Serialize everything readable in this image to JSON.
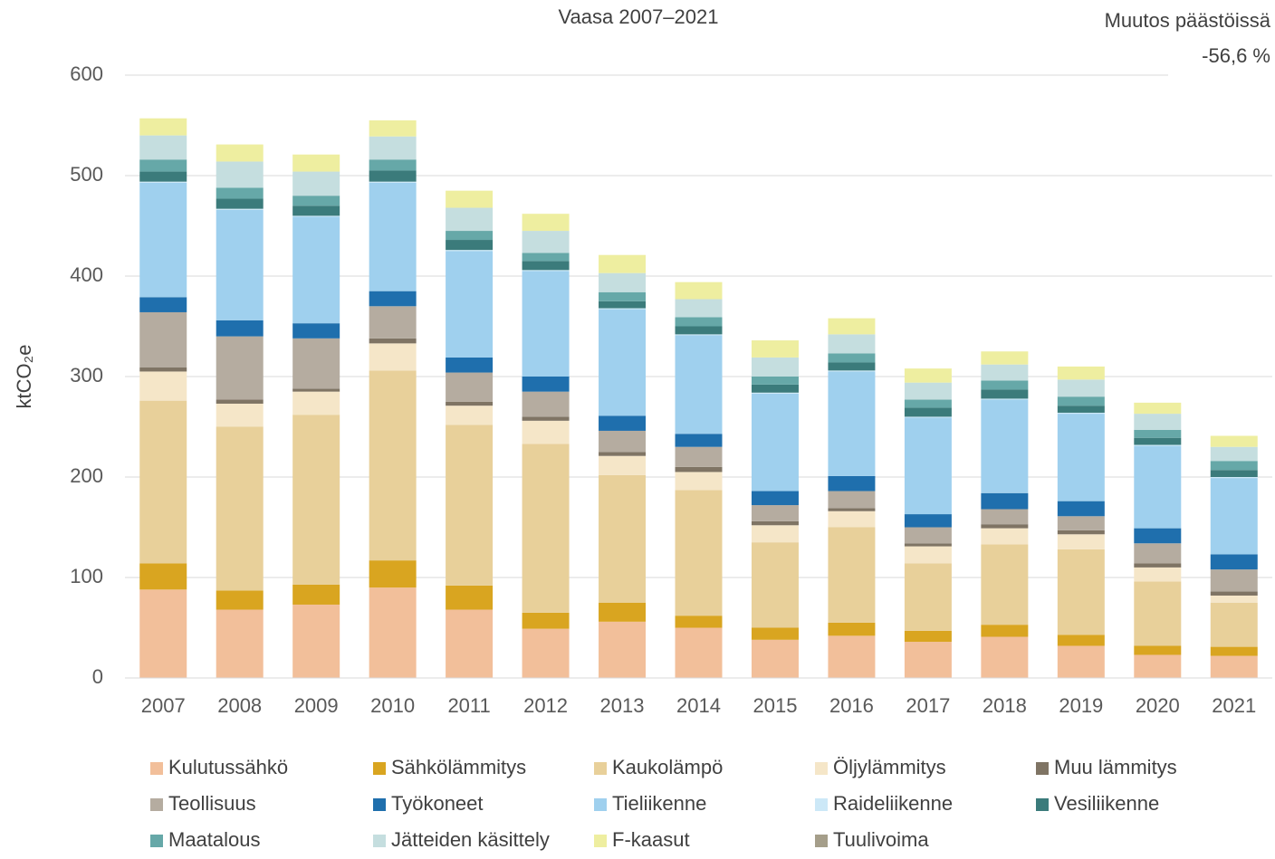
{
  "chart_data": {
    "type": "stacked_bar",
    "title": "Vaasa 2007–2021",
    "annotations": [
      "Muutos päästöissä",
      "-56,6 %"
    ],
    "y_label": "ktCO₂e",
    "categories": [
      "2007",
      "2008",
      "2009",
      "2010",
      "2011",
      "2012",
      "2013",
      "2014",
      "2015",
      "2016",
      "2017",
      "2018",
      "2019",
      "2020",
      "2021"
    ],
    "ylim": [
      0,
      600
    ],
    "yticks": [
      0,
      100,
      200,
      300,
      400,
      500,
      600
    ],
    "grid": true,
    "legend": "bottom",
    "series": [
      {
        "name": "Kulutussähkö",
        "color": "#f2bf9a",
        "values": [
          88,
          68,
          73,
          90,
          68,
          49,
          56,
          50,
          38,
          42,
          36,
          41,
          32,
          23,
          22
        ]
      },
      {
        "name": "Sähkölämmitys",
        "color": "#d9a520",
        "values": [
          26,
          19,
          20,
          27,
          24,
          16,
          19,
          12,
          12,
          13,
          11,
          12,
          11,
          9,
          9
        ]
      },
      {
        "name": "Kaukolämpö",
        "color": "#e8d09a",
        "values": [
          162,
          163,
          169,
          189,
          160,
          168,
          127,
          125,
          85,
          95,
          67,
          80,
          85,
          64,
          44
        ]
      },
      {
        "name": "Öljylämmitys",
        "color": "#f5e6c8",
        "values": [
          29,
          23,
          23,
          27,
          19,
          23,
          19,
          18,
          17,
          16,
          17,
          16,
          15,
          14,
          7
        ]
      },
      {
        "name": "Muu lämmitys",
        "color": "#7f7464",
        "values": [
          4,
          4,
          3,
          5,
          4,
          4,
          4,
          5,
          4,
          3,
          3,
          4,
          4,
          4,
          4
        ]
      },
      {
        "name": "Teollisuus",
        "color": "#b5aca0",
        "values": [
          55,
          63,
          50,
          32,
          29,
          25,
          21,
          20,
          16,
          17,
          16,
          15,
          14,
          20,
          22
        ]
      },
      {
        "name": "Työkoneet",
        "color": "#1f6fad",
        "values": [
          15,
          16,
          15,
          15,
          15,
          15,
          15,
          13,
          14,
          15,
          13,
          16,
          15,
          15,
          15
        ]
      },
      {
        "name": "Tieliikenne",
        "color": "#9fd0ee",
        "values": [
          114,
          110,
          106,
          108,
          106,
          105,
          106,
          98,
          97,
          104,
          96,
          93,
          87,
          82,
          76
        ]
      },
      {
        "name": "Raideliikenne",
        "color": "#cce8f7",
        "values": [
          1,
          1,
          1,
          1,
          1,
          1,
          1,
          1,
          1,
          1,
          1,
          1,
          1,
          1,
          1
        ]
      },
      {
        "name": "Vesiliikenne",
        "color": "#3b7b7b",
        "values": [
          10,
          10,
          10,
          11,
          10,
          9,
          7,
          8,
          8,
          8,
          9,
          9,
          7,
          7,
          7
        ]
      },
      {
        "name": "Maatalous",
        "color": "#66a8a8",
        "values": [
          12,
          11,
          10,
          11,
          9,
          8,
          9,
          9,
          8,
          9,
          8,
          9,
          9,
          8,
          9
        ]
      },
      {
        "name": "Jätteiden käsittely",
        "color": "#c5dedf",
        "values": [
          24,
          26,
          24,
          23,
          23,
          22,
          19,
          18,
          19,
          19,
          17,
          16,
          17,
          16,
          14
        ]
      },
      {
        "name": "F-kaasut",
        "color": "#eeeea0",
        "values": [
          17,
          17,
          17,
          16,
          17,
          17,
          18,
          17,
          17,
          16,
          14,
          13,
          13,
          11,
          11
        ]
      },
      {
        "name": "Tuulivoima",
        "color": "#a59e8a",
        "values": [
          0,
          0,
          0,
          0,
          0,
          0,
          0,
          0,
          0,
          0,
          0,
          0,
          0,
          0,
          0
        ]
      }
    ]
  }
}
